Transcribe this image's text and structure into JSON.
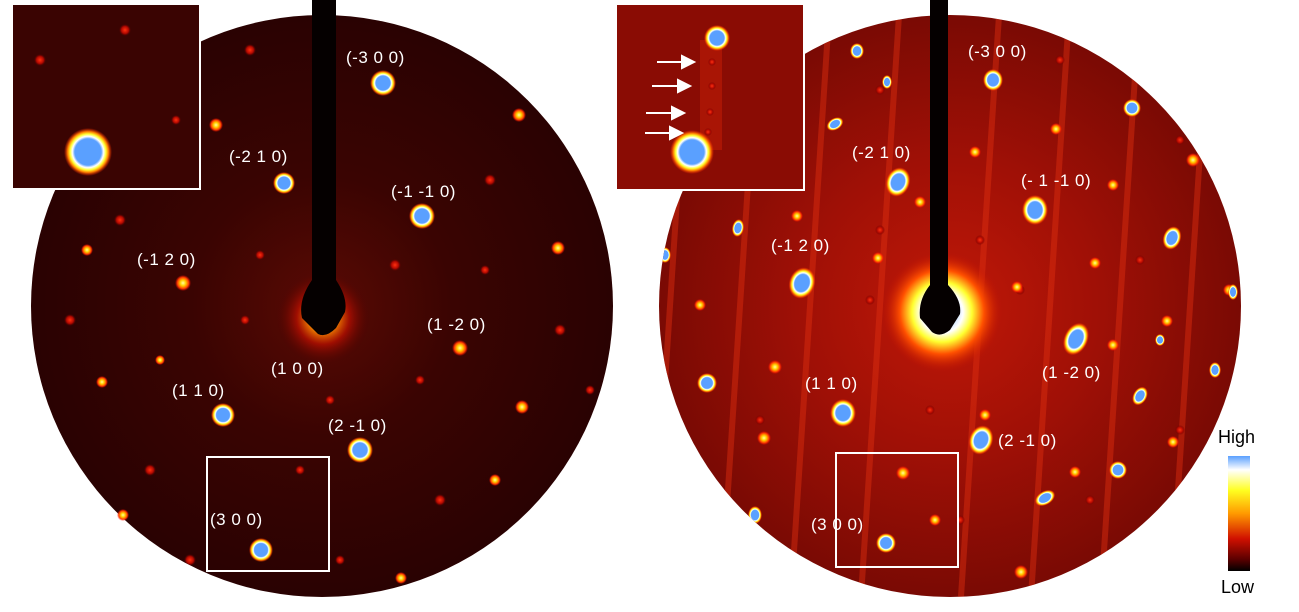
{
  "figure": {
    "colormap": [
      "#000000",
      "#4a0000",
      "#a80000",
      "#ee2000",
      "#ff9a00",
      "#ffff20",
      "#ffffff",
      "#5aa0ff"
    ],
    "colorbar": {
      "high_label": "High",
      "low_label": "Low"
    },
    "panels": [
      {
        "name": "left",
        "labels": [
          "(-3 0 0)",
          "(-2 1 0)",
          "(-1 -1 0)",
          "(-1 2 0)",
          "(1 -2 0)",
          "(1 0 0)",
          "(1 1 0)",
          "(2 -1 0)",
          "(3 0 0)"
        ]
      },
      {
        "name": "right",
        "labels": [
          "(-3 0 0)",
          "(-2 1 0)",
          "(- 1 -1 0)",
          "(-1 2 0)",
          "(1 -2 0)",
          "(1 1 0)",
          "(2 -1 0)",
          "(3 0 0)"
        ]
      }
    ]
  }
}
